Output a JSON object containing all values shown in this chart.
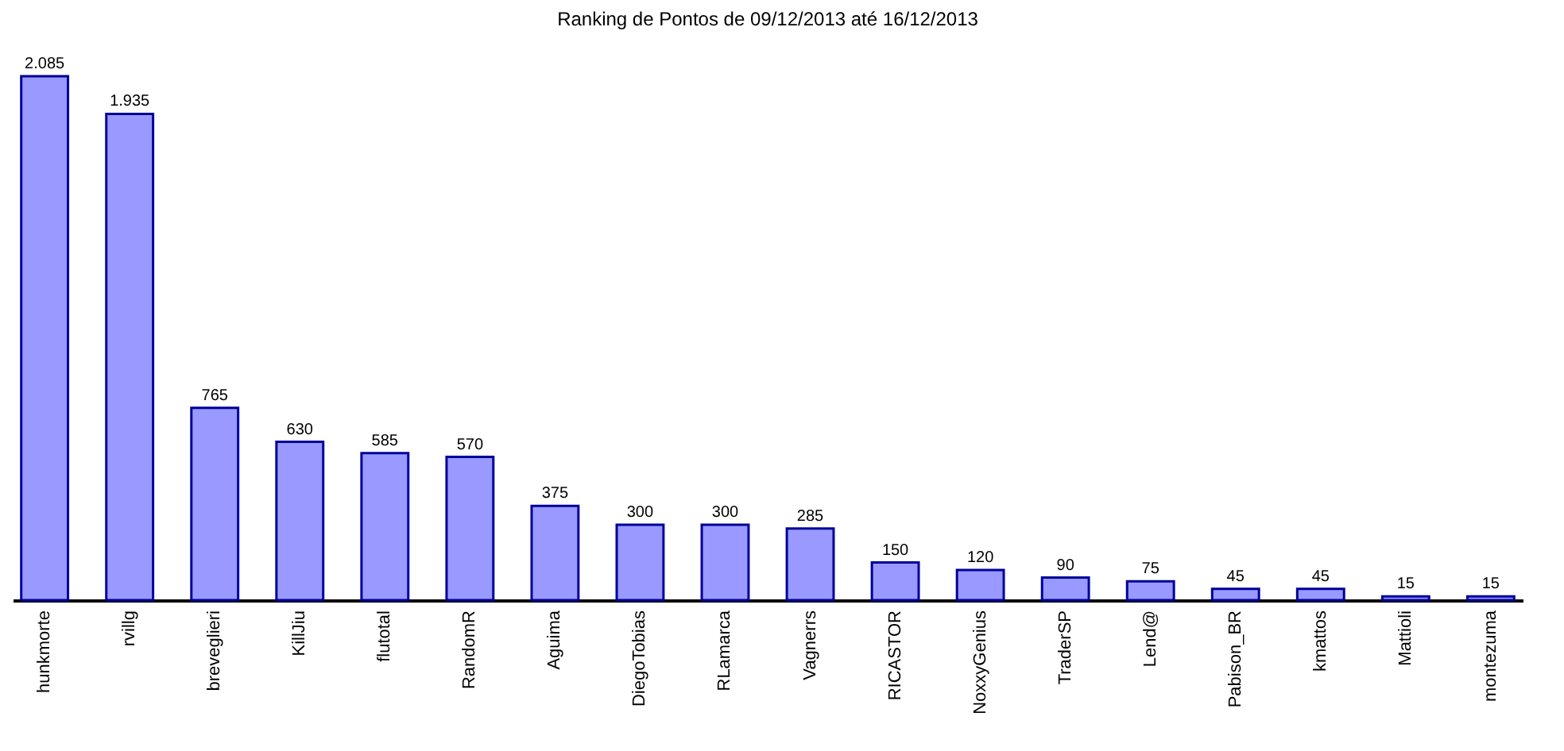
{
  "chart_data": {
    "type": "bar",
    "title": "Ranking de Pontos de 09/12/2013 até 16/12/2013",
    "categories": [
      "hunkmorte",
      "rvillg",
      "breveglieri",
      "KillJiu",
      "flutotal",
      "RandomR",
      "Aguima",
      "DiegoTobias",
      "RLamarca",
      "Vagnerrs",
      "RICASTOR",
      "NoxxyGenius",
      "TraderSP",
      "Lend@",
      "Pabison_BR",
      "kmattos",
      "Mattioli",
      "montezuma"
    ],
    "values": [
      2085,
      1935,
      765,
      630,
      585,
      570,
      375,
      300,
      300,
      285,
      150,
      120,
      90,
      75,
      45,
      45,
      15,
      15
    ],
    "value_labels": [
      "2.085",
      "1.935",
      "765",
      "630",
      "585",
      "570",
      "375",
      "300",
      "300",
      "285",
      "150",
      "120",
      "90",
      "75",
      "45",
      "45",
      "15",
      "15"
    ],
    "color": "#9999ff"
  }
}
